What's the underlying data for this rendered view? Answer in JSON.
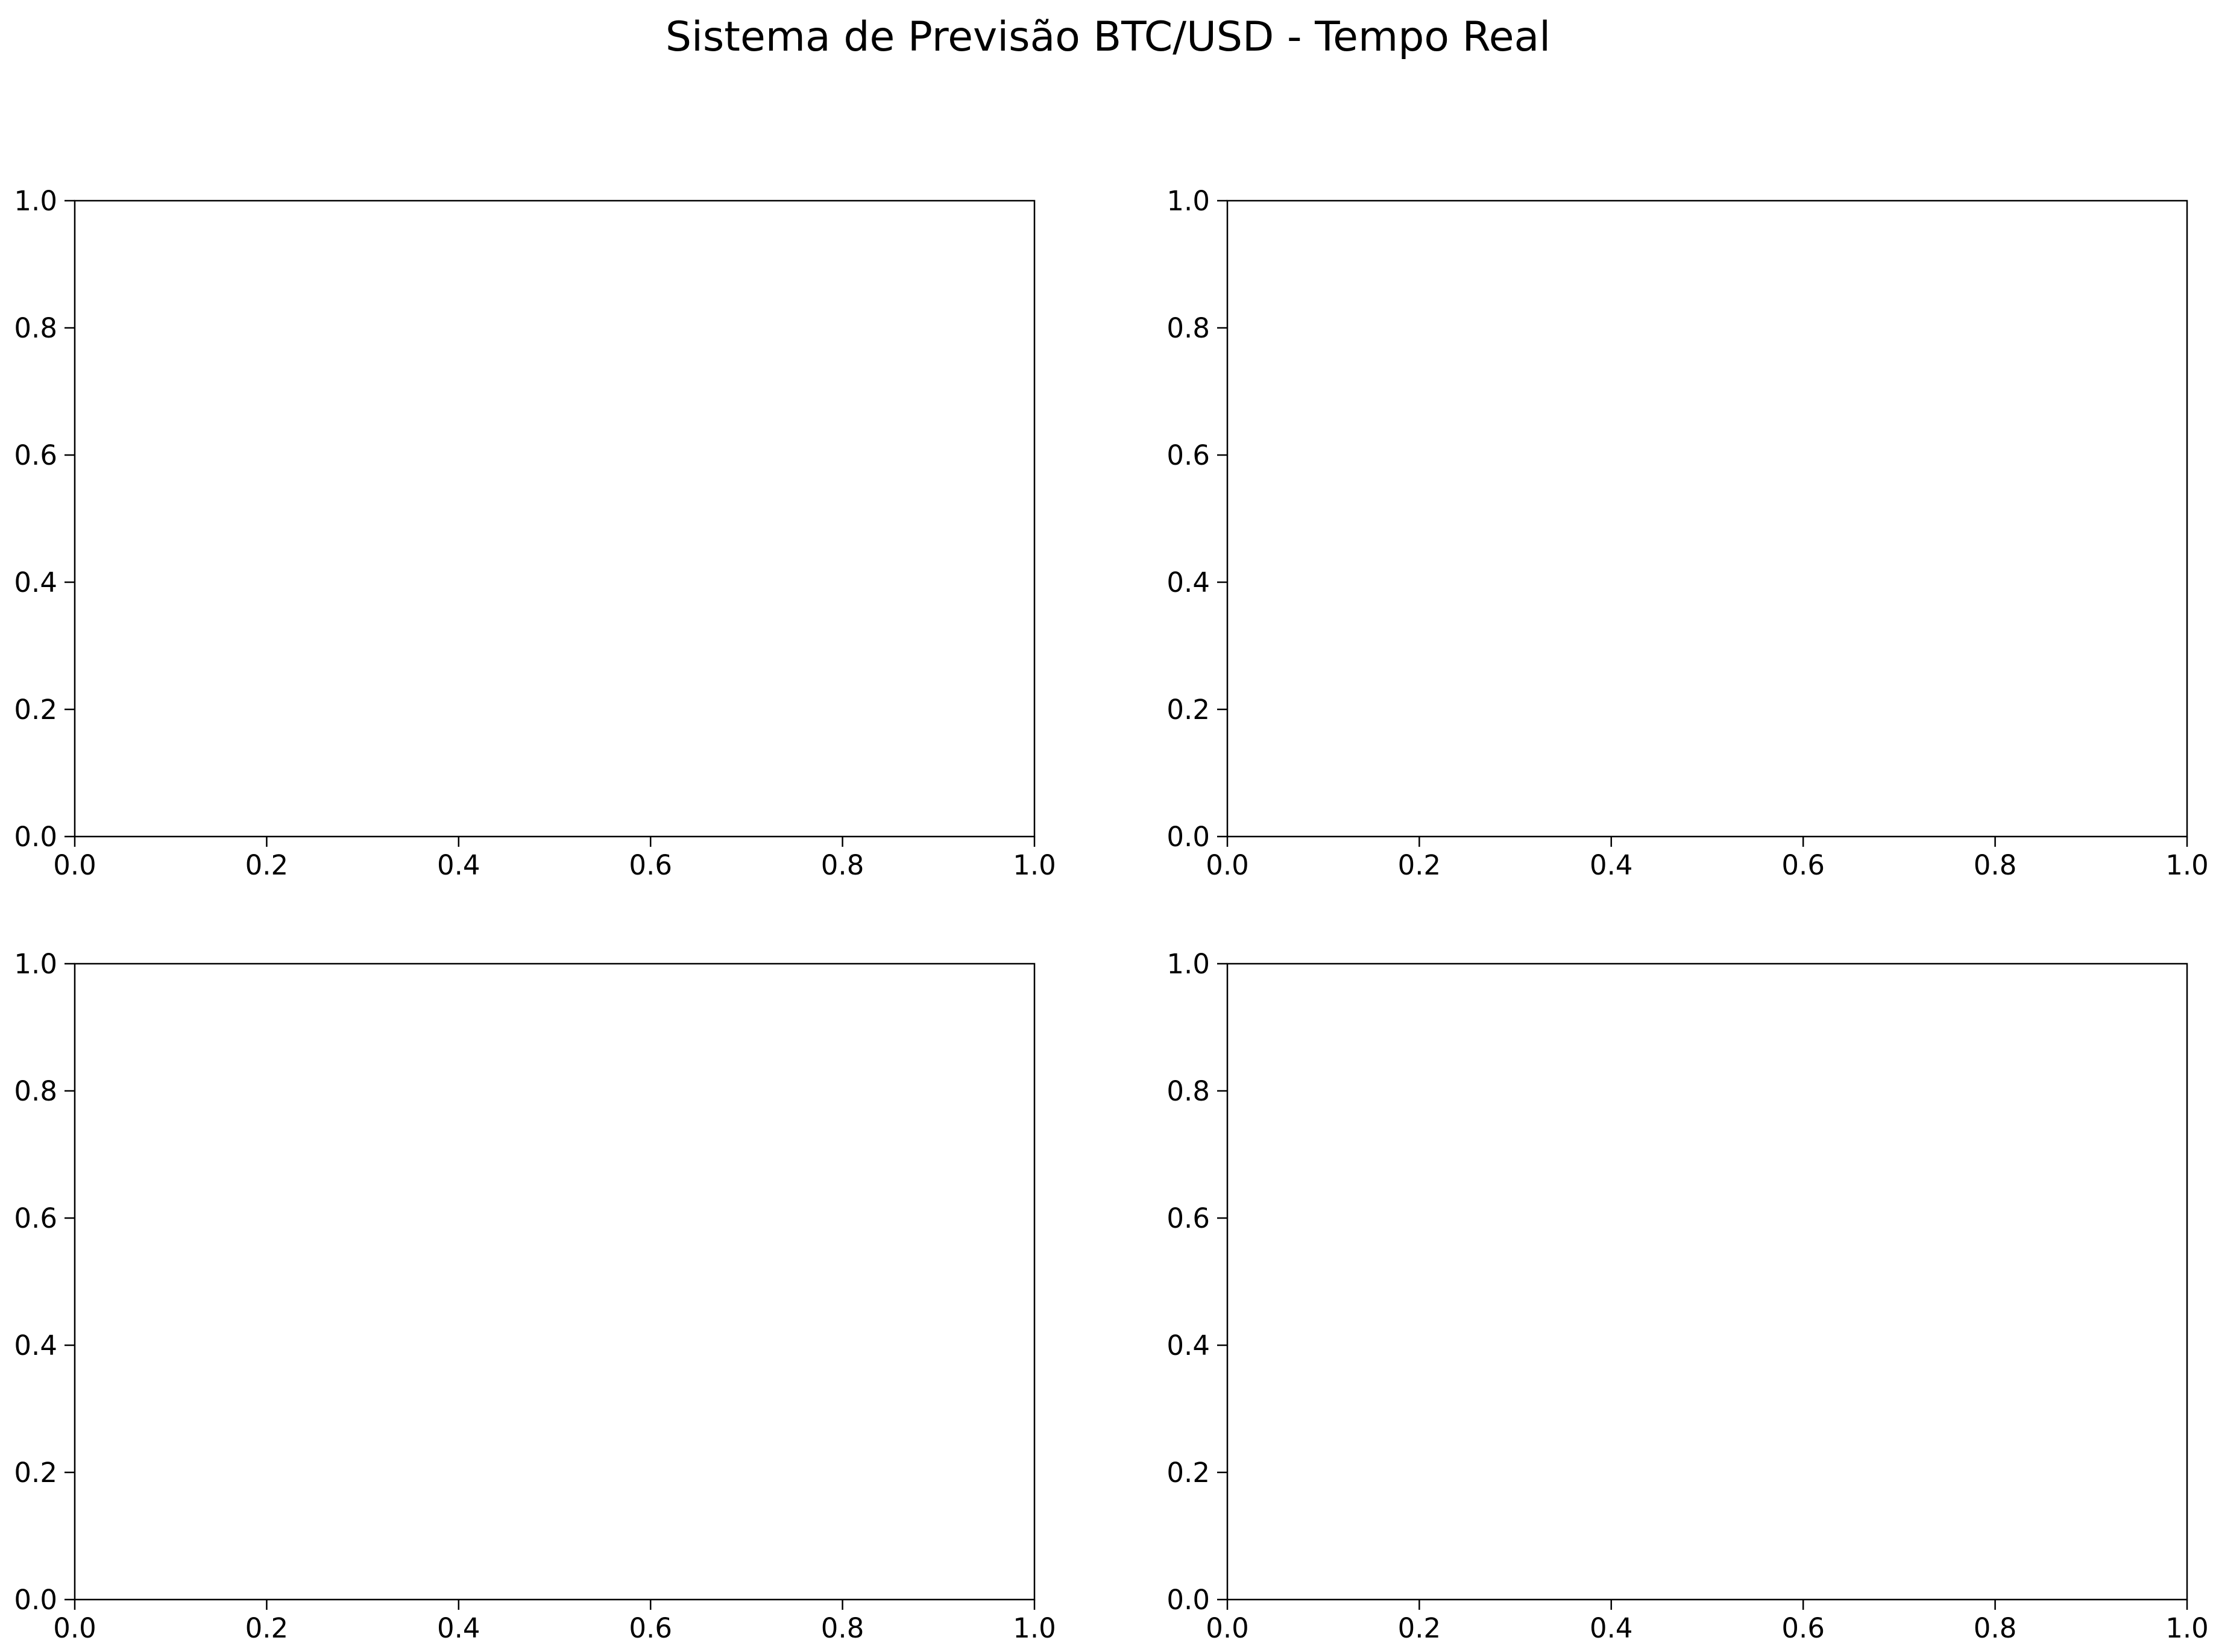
{
  "figure": {
    "suptitle": "Sistema de Previsão BTC/USD - Tempo Real"
  },
  "chart_data": [
    {
      "type": "line",
      "title": "",
      "xlabel": "",
      "ylabel": "",
      "xlim": [
        0,
        1
      ],
      "ylim": [
        0,
        1
      ],
      "x_ticks": [
        "0.0",
        "0.2",
        "0.4",
        "0.6",
        "0.8",
        "1.0"
      ],
      "y_ticks": [
        "0.0",
        "0.2",
        "0.4",
        "0.6",
        "0.8",
        "1.0"
      ],
      "series": [],
      "grid": false
    },
    {
      "type": "line",
      "title": "",
      "xlabel": "",
      "ylabel": "",
      "xlim": [
        0,
        1
      ],
      "ylim": [
        0,
        1
      ],
      "x_ticks": [
        "0.0",
        "0.2",
        "0.4",
        "0.6",
        "0.8",
        "1.0"
      ],
      "y_ticks": [
        "0.0",
        "0.2",
        "0.4",
        "0.6",
        "0.8",
        "1.0"
      ],
      "series": [],
      "grid": false
    },
    {
      "type": "line",
      "title": "",
      "xlabel": "",
      "ylabel": "",
      "xlim": [
        0,
        1
      ],
      "ylim": [
        0,
        1
      ],
      "x_ticks": [
        "0.0",
        "0.2",
        "0.4",
        "0.6",
        "0.8",
        "1.0"
      ],
      "y_ticks": [
        "0.0",
        "0.2",
        "0.4",
        "0.6",
        "0.8",
        "1.0"
      ],
      "series": [],
      "grid": false
    },
    {
      "type": "line",
      "title": "",
      "xlabel": "",
      "ylabel": "",
      "xlim": [
        0,
        1
      ],
      "ylim": [
        0,
        1
      ],
      "x_ticks": [
        "0.0",
        "0.2",
        "0.4",
        "0.6",
        "0.8",
        "1.0"
      ],
      "y_ticks": [
        "0.0",
        "0.2",
        "0.4",
        "0.6",
        "0.8",
        "1.0"
      ],
      "series": [],
      "grid": false
    }
  ]
}
